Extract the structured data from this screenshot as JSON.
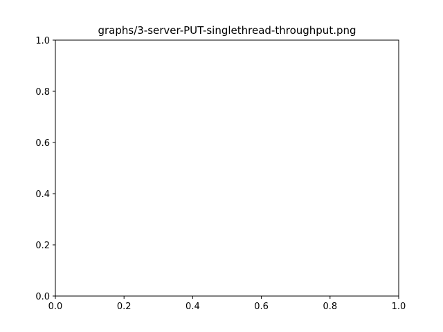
{
  "chart_data": {
    "type": "line",
    "title": "graphs/3-server-PUT-singlethread-throughput.png",
    "xlabel": "",
    "ylabel": "",
    "xlim": [
      0.0,
      1.0
    ],
    "ylim": [
      0.0,
      1.0
    ],
    "xticks": [
      "0.0",
      "0.2",
      "0.4",
      "0.6",
      "0.8",
      "1.0"
    ],
    "yticks": [
      "0.0",
      "0.2",
      "0.4",
      "0.6",
      "0.8",
      "1.0"
    ],
    "series": [],
    "grid": false,
    "legend": "none"
  }
}
